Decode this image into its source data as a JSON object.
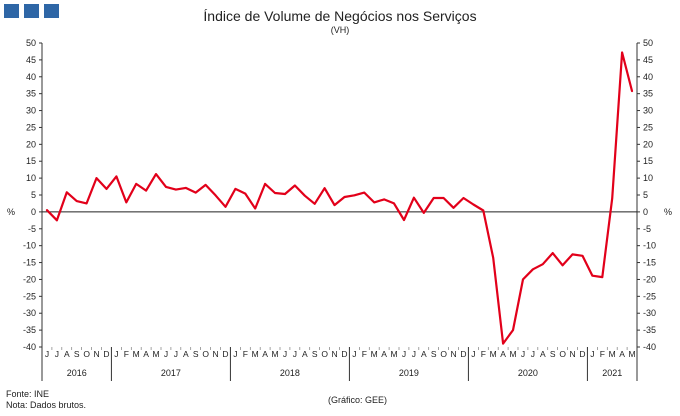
{
  "header": {
    "title": "Índice de Volume de Negócios nos Serviços",
    "subtitle": "(VH)"
  },
  "footer": {
    "source": "Fonte: INE",
    "note": "Nota: Dados brutos.",
    "credit": "(Gráfico: GEE)"
  },
  "chart_data": {
    "type": "line",
    "title": "Índice de Volume de Negócios nos Serviços",
    "subtitle": "(VH)",
    "ylabel_left": "%",
    "ylabel_right": "%",
    "ylim": [
      -40,
      50
    ],
    "yticks": [
      50,
      45,
      40,
      35,
      30,
      25,
      20,
      15,
      10,
      5,
      0,
      -5,
      -10,
      -15,
      -20,
      -25,
      -30,
      -35,
      -40
    ],
    "grid": false,
    "line_color": "#e2001a",
    "x": [
      "J",
      "J",
      "A",
      "S",
      "O",
      "N",
      "D",
      "J",
      "F",
      "M",
      "A",
      "M",
      "J",
      "J",
      "A",
      "S",
      "O",
      "N",
      "D",
      "J",
      "F",
      "M",
      "A",
      "M",
      "J",
      "J",
      "A",
      "S",
      "O",
      "N",
      "D",
      "J",
      "F",
      "M",
      "A",
      "M",
      "J",
      "J",
      "A",
      "S",
      "O",
      "N",
      "D",
      "J",
      "F",
      "M",
      "A",
      "M",
      "J",
      "J",
      "A",
      "S",
      "O",
      "N",
      "D",
      "J",
      "F",
      "M",
      "A",
      "M"
    ],
    "years": [
      {
        "label": "2016",
        "start": 0,
        "count": 7
      },
      {
        "label": "2017",
        "start": 7,
        "count": 12
      },
      {
        "label": "2018",
        "start": 19,
        "count": 12
      },
      {
        "label": "2019",
        "start": 31,
        "count": 12
      },
      {
        "label": "2020",
        "start": 43,
        "count": 12
      },
      {
        "label": "2021",
        "start": 55,
        "count": 5
      }
    ],
    "series": [
      {
        "values": [
          0.5,
          -2.5,
          5.8,
          3.2,
          2.5,
          10.0,
          6.8,
          10.5,
          2.8,
          8.3,
          6.3,
          11.2,
          7.4,
          6.6,
          7.1,
          5.7,
          8.0,
          4.9,
          1.5,
          6.8,
          5.4,
          1.0,
          8.3,
          5.6,
          5.3,
          7.8,
          4.8,
          2.4,
          7.0,
          2.0,
          4.4,
          4.9,
          5.7,
          2.8,
          3.7,
          2.5,
          -2.4,
          4.2,
          -0.3,
          4.1,
          4.1,
          1.2,
          4.1,
          2.2,
          0.4,
          -13.6,
          -39.0,
          -35.0,
          -20.0,
          -17.0,
          -15.5,
          -12.2,
          -15.8,
          -12.6,
          -13.0,
          -18.9,
          -19.3,
          4.0,
          47.2,
          35.8
        ]
      }
    ]
  }
}
